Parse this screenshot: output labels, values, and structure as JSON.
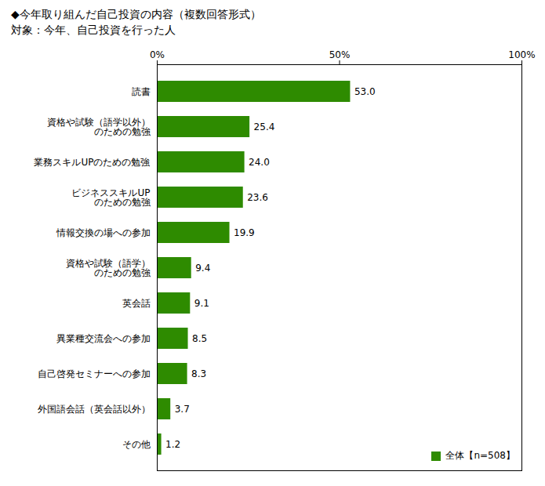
{
  "chart_data": {
    "type": "bar",
    "orientation": "horizontal",
    "title": "◆今年取り組んだ自己投資の内容（複数回答形式）",
    "subtitle": "対象：今年、自己投資を行った人",
    "categories": [
      "読書",
      "資格や試験（語学以外）\nのための勉強",
      "業務スキルUPのための勉強",
      "ビジネススキルUP\nのための勉強",
      "情報交換の場への参加",
      "資格や試験（語学）\nのための勉強",
      "英会話",
      "異業種交流会への参加",
      "自己啓発セミナーへの参加",
      "外国語会話（英会話以外）",
      "その他"
    ],
    "series": [
      {
        "name": "全体【n=508】",
        "color": "#2e8b00",
        "values": [
          53.0,
          25.4,
          24.0,
          23.6,
          19.9,
          9.4,
          9.1,
          8.5,
          8.3,
          3.7,
          1.2
        ],
        "value_labels": [
          "53.0",
          "25.4",
          "24.0",
          "23.6",
          "19.9",
          "9.4",
          "9.1",
          "8.5",
          "8.3",
          "3.7",
          "1.2"
        ]
      }
    ],
    "xlim": [
      0,
      100
    ],
    "xticks": [
      {
        "value": 0,
        "label": "0%"
      },
      {
        "value": 50,
        "label": "50%"
      },
      {
        "value": 100,
        "label": "100%"
      }
    ],
    "data_labels": true,
    "legend": "lower right"
  }
}
